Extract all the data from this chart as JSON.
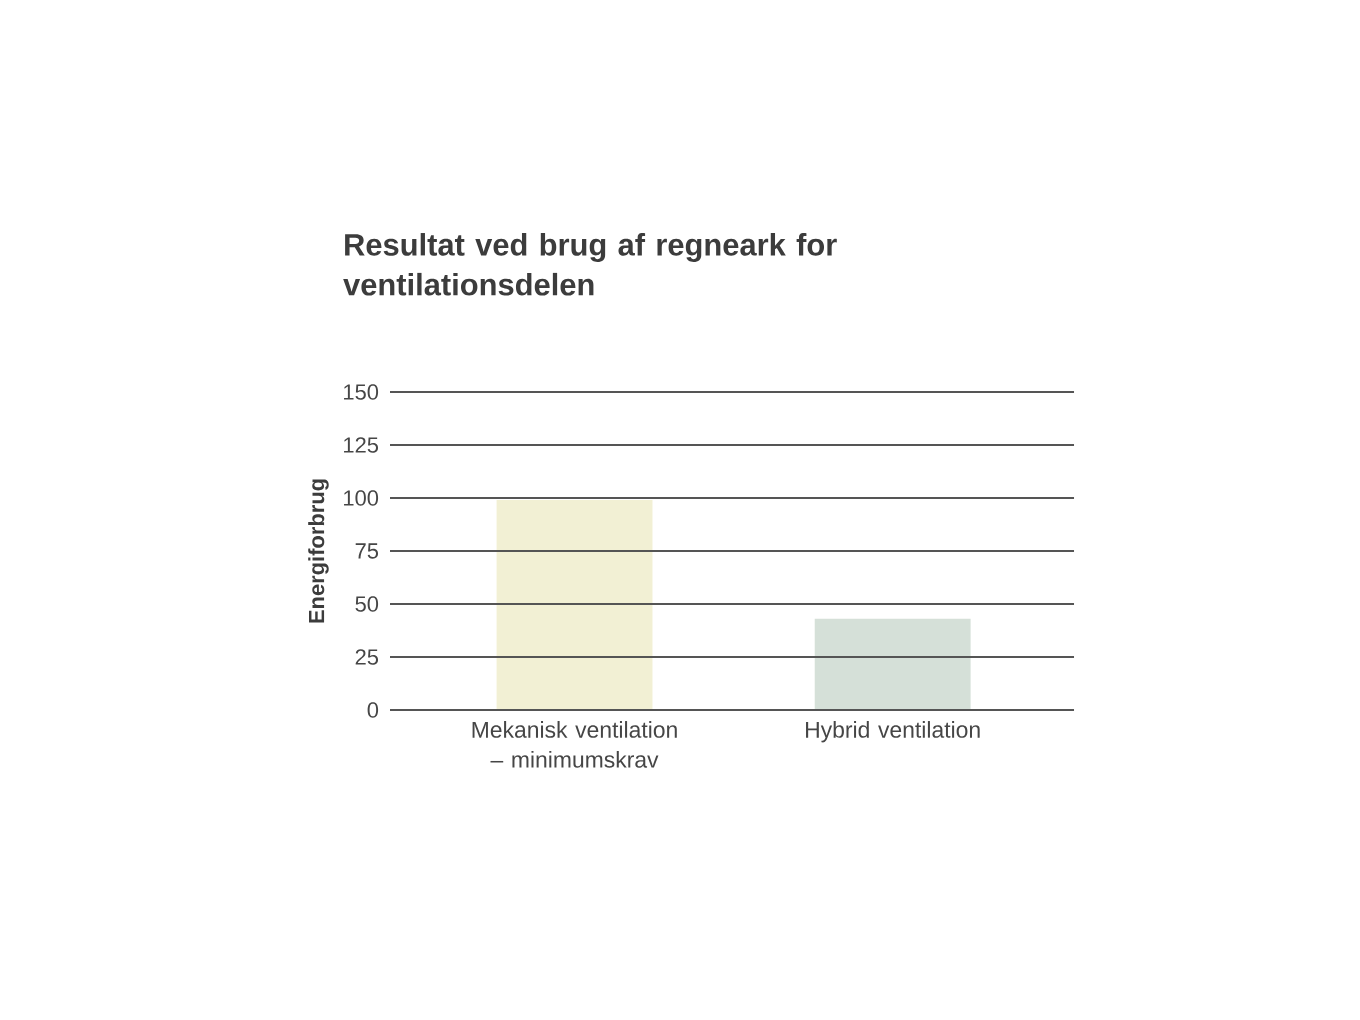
{
  "chart_data": {
    "type": "bar",
    "title": "Resultat ved brug af regneark for ventilationsdelen",
    "ylabel": "Energiforbrug",
    "categories": [
      "Mekanisk ventilation – minimumskrav",
      "Hybrid ventilation"
    ],
    "values": [
      99,
      43
    ],
    "colors": [
      "#f2f0d4",
      "#d5e0d8"
    ],
    "ylim": [
      0,
      150
    ],
    "yticks": [
      0,
      25,
      50,
      75,
      100,
      125,
      150
    ],
    "grid": "y"
  }
}
